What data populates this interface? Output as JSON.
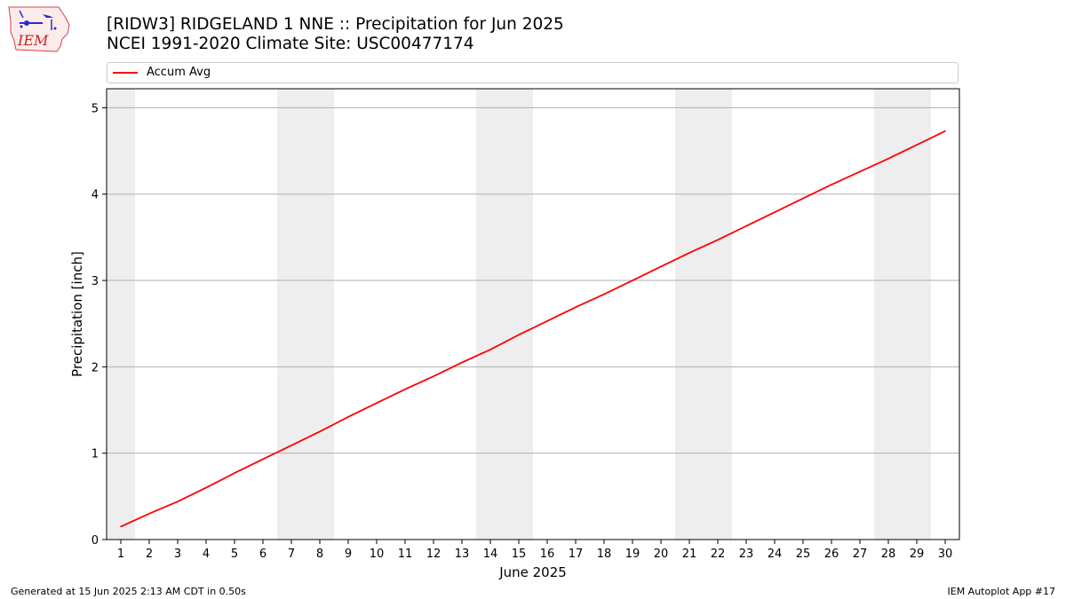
{
  "header": {
    "title_line1": "[RIDW3] RIDGELAND 1 NNE :: Precipitation for Jun 2025",
    "title_line2": "NCEI 1991-2020 Climate Site: USC00477174"
  },
  "logo": {
    "text": "IEM"
  },
  "footer": {
    "left": "Generated at 15 Jun 2025 2:13 AM CDT in 0.50s",
    "right": "IEM Autoplot App #17"
  },
  "chart_data": {
    "type": "line",
    "xlabel": "June 2025",
    "ylabel": "Precipitation [inch]",
    "x": [
      1,
      2,
      3,
      4,
      5,
      6,
      7,
      8,
      9,
      10,
      11,
      12,
      13,
      14,
      15,
      16,
      17,
      18,
      19,
      20,
      21,
      22,
      23,
      24,
      25,
      26,
      27,
      28,
      29,
      30
    ],
    "xlim": [
      0.5,
      30.5
    ],
    "ylim": [
      0,
      5.22
    ],
    "yticks": [
      0,
      1,
      2,
      3,
      4,
      5
    ],
    "grid": "y",
    "weekend_shading": [
      [
        0.5,
        1.5
      ],
      [
        6.5,
        8.5
      ],
      [
        13.5,
        15.5
      ],
      [
        20.5,
        22.5
      ],
      [
        27.5,
        29.5
      ]
    ],
    "legend_position": "top",
    "series": [
      {
        "name": "Accum Avg",
        "color": "#ff0000",
        "values": [
          0.15,
          0.3,
          0.44,
          0.6,
          0.77,
          0.93,
          1.09,
          1.25,
          1.42,
          1.58,
          1.74,
          1.89,
          2.05,
          2.2,
          2.37,
          2.53,
          2.69,
          2.84,
          3.0,
          3.16,
          3.32,
          3.47,
          3.63,
          3.79,
          3.95,
          4.11,
          4.26,
          4.41,
          4.57,
          4.73
        ]
      }
    ]
  }
}
